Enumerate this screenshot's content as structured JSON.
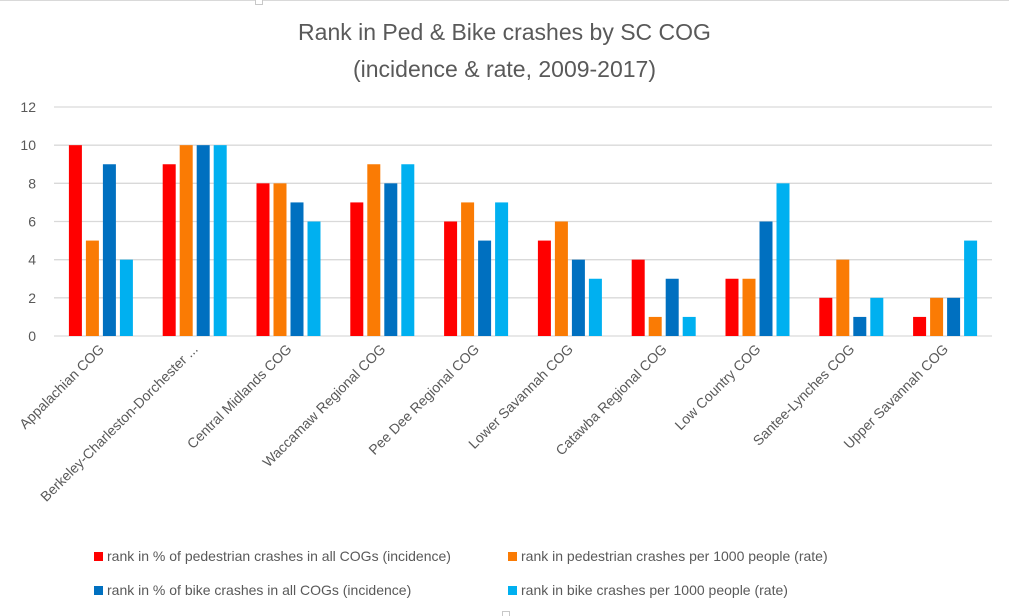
{
  "chart_data": {
    "type": "bar",
    "title": "Rank in Ped & Bike crashes by SC COG",
    "subtitle": "(incidence & rate, 2009-2017)",
    "xlabel": "",
    "ylabel": "",
    "ylim": [
      0,
      12
    ],
    "yticks": [
      0,
      2,
      4,
      6,
      8,
      10,
      12
    ],
    "grid": true,
    "legend_position": "bottom",
    "categories": [
      "Appalachian COG",
      "Berkeley-Charleston-Dorchester ...",
      "Central Midlands COG",
      "Waccamaw Regional COG",
      "Pee Dee Regional COG",
      "Lower Savannah COG",
      "Catawba Regional COG",
      "Low Country COG",
      "Santee-Lynches COG",
      "Upper Savannah COG"
    ],
    "series": [
      {
        "name": "rank in % of pedestrian crashes in all COGs (incidence)",
        "color": "#ff0000",
        "values": [
          10,
          9,
          8,
          7,
          6,
          5,
          4,
          3,
          2,
          1
        ]
      },
      {
        "name": "rank in pedestrian crashes per 1000 people (rate)",
        "color": "#fa7b04",
        "values": [
          5,
          10,
          8,
          9,
          7,
          6,
          1,
          3,
          4,
          2
        ]
      },
      {
        "name": "rank in % of bike crashes in all COGs (incidence)",
        "color": "#0070c0",
        "values": [
          9,
          10,
          7,
          8,
          5,
          4,
          3,
          6,
          1,
          2
        ]
      },
      {
        "name": "rank in bike crashes per 1000 people (rate)",
        "color": "#00b0f0",
        "values": [
          4,
          10,
          6,
          9,
          7,
          3,
          1,
          8,
          2,
          5
        ]
      }
    ]
  }
}
